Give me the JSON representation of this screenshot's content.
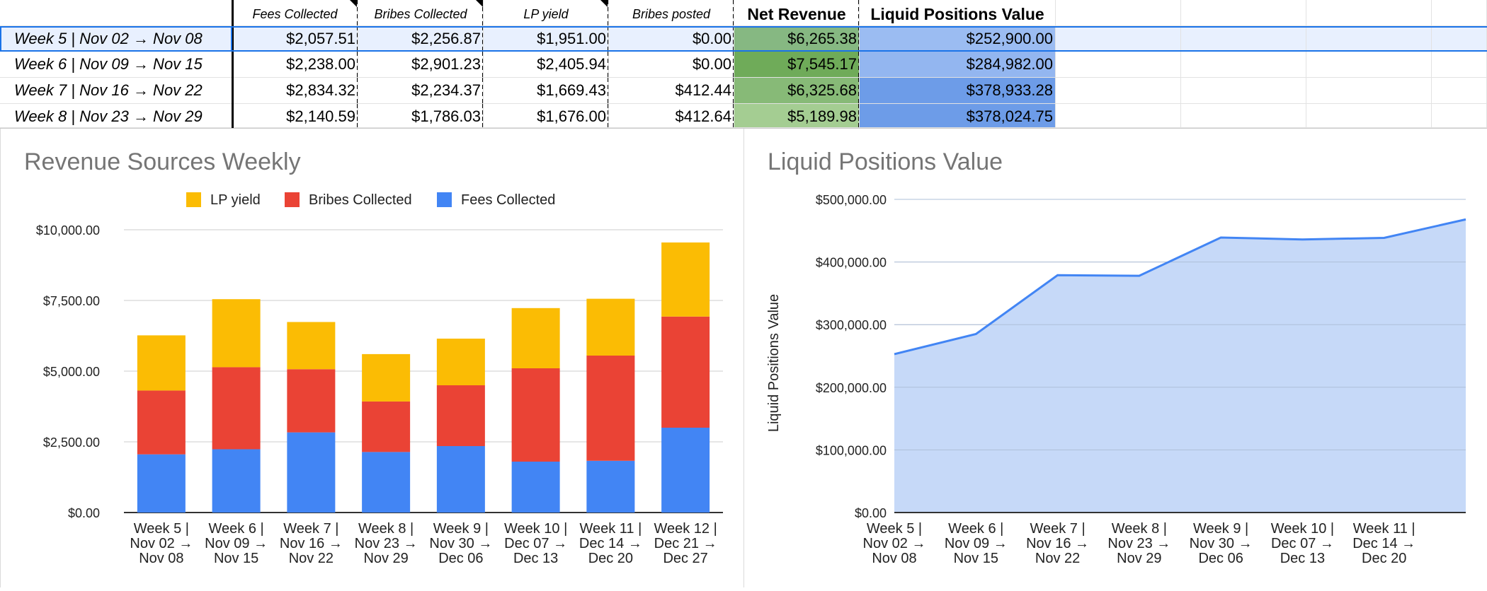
{
  "sheet": {
    "headers": [
      "Fees Collected",
      "Bribes Collected",
      "LP yield",
      "Bribes posted",
      "Net Revenue",
      "Liquid Positions Value"
    ],
    "rows": [
      {
        "label": "Week 5 | Nov 02 → Nov 08",
        "cells": [
          "$2,057.51",
          "$2,256.87",
          "$1,951.00",
          "$0.00",
          "$6,265.38",
          "$252,900.00"
        ],
        "net_color": "#86b882",
        "lpv_color": "#9bbcf2"
      },
      {
        "label": "Week 6 | Nov 09 → Nov 15",
        "cells": [
          "$2,238.00",
          "$2,901.23",
          "$2,405.94",
          "$0.00",
          "$7,545.17",
          "$284,982.00"
        ],
        "net_color": "#6fab59",
        "lpv_color": "#93b6f0"
      },
      {
        "label": "Week 7 | Nov 16 → Nov 22",
        "cells": [
          "$2,834.32",
          "$2,234.37",
          "$1,669.43",
          "$412.44",
          "$6,325.68",
          "$378,933.28"
        ],
        "net_color": "#87ba77",
        "lpv_color": "#6d9ce8"
      },
      {
        "label": "Week 8 | Nov 23 → Nov 29",
        "cells": [
          "$2,140.59",
          "$1,786.03",
          "$1,676.00",
          "$412.64",
          "$5,189.98",
          "$378,024.75"
        ],
        "net_color": "#a4cd92",
        "lpv_color": "#6d9ce8"
      }
    ]
  },
  "chart_data": [
    {
      "type": "bar",
      "stacked": true,
      "title": "Revenue Sources Weekly",
      "xlabel": "",
      "ylabel": "",
      "ylim": [
        0,
        10000
      ],
      "yticks": [
        "$0.00",
        "$2,500.00",
        "$5,000.00",
        "$7,500.00",
        "$10,000.00"
      ],
      "ytick_values": [
        0,
        2500,
        5000,
        7500,
        10000
      ],
      "legend_position": "top",
      "categories": [
        [
          "Week 5 |",
          "Nov 02 →",
          "Nov 08"
        ],
        [
          "Week 6 |",
          "Nov 09 →",
          "Nov 15"
        ],
        [
          "Week 7 |",
          "Nov 16 →",
          "Nov 22"
        ],
        [
          "Week 8 |",
          "Nov 23 →",
          "Nov 29"
        ],
        [
          "Week 9 |",
          "Nov 30 →",
          "Dec 06"
        ],
        [
          "Week 10 |",
          "Dec 07 →",
          "Dec 13"
        ],
        [
          "Week 11 |",
          "Dec 14 →",
          "Dec 20"
        ],
        [
          "Week 12 |",
          "Dec 21 →",
          "Dec 27"
        ]
      ],
      "series": [
        {
          "name": "Fees Collected",
          "color": "#4285f4",
          "values": [
            2057.51,
            2238.0,
            2834.32,
            2140.59,
            2350,
            1800,
            1830,
            3000
          ]
        },
        {
          "name": "Bribes Collected",
          "color": "#ea4335",
          "values": [
            2256.87,
            2901.23,
            2234.37,
            1786.03,
            2150,
            3300,
            3720,
            3930
          ]
        },
        {
          "name": "LP yield",
          "color": "#fbbc04",
          "values": [
            1951.0,
            2405.94,
            1669.43,
            1676.0,
            1650,
            2130,
            2010,
            2620
          ]
        }
      ],
      "legend_order": [
        "LP yield",
        "Bribes Collected",
        "Fees Collected"
      ]
    },
    {
      "type": "area",
      "title": "Liquid Positions Value",
      "xlabel": "",
      "ylabel": "Liquid Positions Value",
      "ylim": [
        0,
        500000
      ],
      "yticks": [
        "$0.00",
        "$100,000.00",
        "$200,000.00",
        "$300,000.00",
        "$400,000.00",
        "$500,000.00"
      ],
      "ytick_values": [
        0,
        100000,
        200000,
        300000,
        400000,
        500000
      ],
      "categories": [
        [
          "Week 5 |",
          "Nov 02 →",
          "Nov 08"
        ],
        [
          "Week 6 |",
          "Nov 09 →",
          "Nov 15"
        ],
        [
          "Week 7 |",
          "Nov 16 →",
          "Nov 22"
        ],
        [
          "Week 8 |",
          "Nov 23 →",
          "Nov 29"
        ],
        [
          "Week 9 |",
          "Nov 30 →",
          "Dec 06"
        ],
        [
          "Week 10 |",
          "Dec 07 →",
          "Dec 13"
        ],
        [
          "Week 11 |",
          "Dec 14 →",
          "Dec 20"
        ],
        [
          "",
          "",
          ""
        ]
      ],
      "series": [
        {
          "name": "Liquid Positions Value",
          "color": "#4285f4",
          "fill": "#c6d9f8",
          "values": [
            252900.0,
            284982.0,
            378933.28,
            378024.75,
            439000,
            436000,
            438500,
            468000
          ]
        }
      ]
    }
  ]
}
